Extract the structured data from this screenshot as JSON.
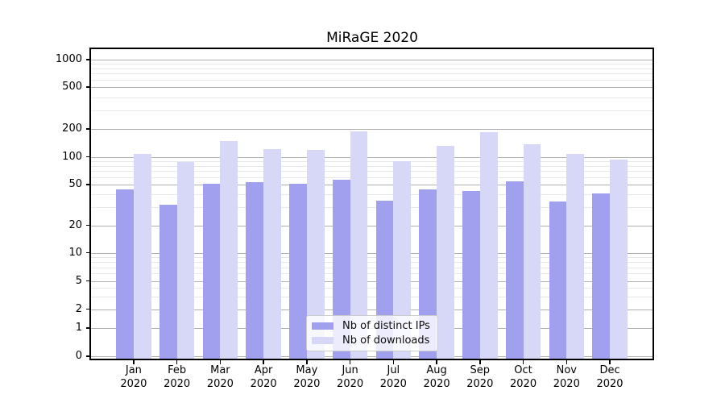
{
  "title": "MiRaGE 2020",
  "legend": {
    "items": [
      {
        "label": "Nb of distinct IPs",
        "color": "#a0a0ee"
      },
      {
        "label": "Nb of downloads",
        "color": "#d7d7f8"
      }
    ]
  },
  "chart_data": {
    "type": "bar",
    "title": "MiRaGE 2020",
    "xlabel": "",
    "ylabel": "",
    "categories": [
      "Jan 2020",
      "Feb 2020",
      "Mar 2020",
      "Apr 2020",
      "May 2020",
      "Jun 2020",
      "Jul 2020",
      "Aug 2020",
      "Sep 2020",
      "Oct 2020",
      "Nov 2020",
      "Dec 2020"
    ],
    "x_labels": [
      {
        "month": "Jan",
        "year": "2020"
      },
      {
        "month": "Feb",
        "year": "2020"
      },
      {
        "month": "Mar",
        "year": "2020"
      },
      {
        "month": "Apr",
        "year": "2020"
      },
      {
        "month": "May",
        "year": "2020"
      },
      {
        "month": "Jun",
        "year": "2020"
      },
      {
        "month": "Jul",
        "year": "2020"
      },
      {
        "month": "Aug",
        "year": "2020"
      },
      {
        "month": "Sep",
        "year": "2020"
      },
      {
        "month": "Oct",
        "year": "2020"
      },
      {
        "month": "Nov",
        "year": "2020"
      },
      {
        "month": "Dec",
        "year": "2020"
      }
    ],
    "series": [
      {
        "name": "Nb of distinct IPs",
        "color": "#a0a0ee",
        "values": [
          45,
          32,
          51,
          53,
          51,
          56,
          35,
          45,
          43,
          54,
          34,
          41
        ]
      },
      {
        "name": "Nb of downloads",
        "color": "#d7d7f8",
        "values": [
          108,
          88,
          148,
          120,
          118,
          187,
          90,
          130,
          184,
          137,
          107,
          94
        ]
      }
    ],
    "y_scale": "symlog",
    "ylim": [
      0,
      1000
    ],
    "y_ticks": [
      {
        "label": "1000",
        "value": 1000
      },
      {
        "label": "500",
        "value": 500
      },
      {
        "label": "200",
        "value": 200
      },
      {
        "label": "100",
        "value": 100
      },
      {
        "label": "50",
        "value": 50
      },
      {
        "label": "20",
        "value": 20
      },
      {
        "label": "10",
        "value": 10
      },
      {
        "label": "5",
        "value": 5
      },
      {
        "label": "2",
        "value": 2
      },
      {
        "label": "1",
        "value": 1
      },
      {
        "label": "0",
        "value": 0
      }
    ],
    "y_minor_gridlines": [
      900,
      800,
      700,
      600,
      400,
      300,
      90,
      80,
      70,
      60,
      40,
      30,
      9,
      8,
      7,
      6,
      4,
      3
    ],
    "grid": true,
    "legend_position": "lower center"
  }
}
